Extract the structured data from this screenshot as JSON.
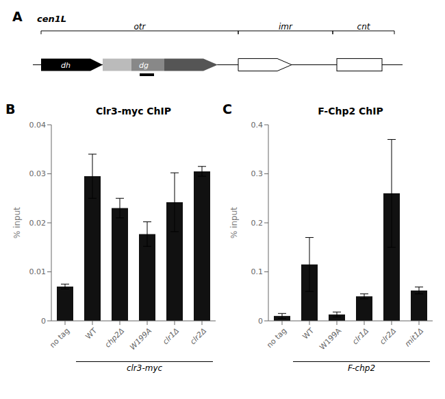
{
  "chart_data": [
    {
      "type": "diagram",
      "annotations": [
        "A",
        "cen1L",
        "otr",
        "imr",
        "cnt",
        "dh",
        "dg"
      ]
    },
    {
      "type": "bar",
      "title": "Clr3-myc ChIP",
      "ylabel": "% input",
      "categories": [
        "no tag",
        "WT",
        "chp2Δ",
        "W199A",
        "clr1Δ",
        "clr2Δ"
      ],
      "values": [
        0.007,
        0.0295,
        0.023,
        0.0177,
        0.0242,
        0.0305
      ],
      "errors": [
        0.0005,
        0.0045,
        0.002,
        0.0025,
        0.006,
        0.001
      ],
      "color": "#111111",
      "ylim": [
        0,
        0.04
      ],
      "yticks": [
        0,
        0.01,
        0.02,
        0.03,
        0.04
      ],
      "grid": false,
      "annotations": [
        "B",
        "clr3-myc"
      ]
    },
    {
      "type": "bar",
      "title": "F-Chp2 ChIP",
      "ylabel": "% input",
      "categories": [
        "no tag",
        "WT",
        "W199A",
        "clr1Δ",
        "clr2Δ",
        "mit1Δ"
      ],
      "values": [
        0.01,
        0.115,
        0.013,
        0.05,
        0.26,
        0.062
      ],
      "errors": [
        0.005,
        0.055,
        0.005,
        0.005,
        0.11,
        0.007
      ],
      "color": "#111111",
      "ylim": [
        0,
        0.4
      ],
      "yticks": [
        0,
        0.1,
        0.2,
        0.3,
        0.4
      ],
      "grid": false,
      "annotations": [
        "C",
        "F-chp2"
      ]
    }
  ]
}
